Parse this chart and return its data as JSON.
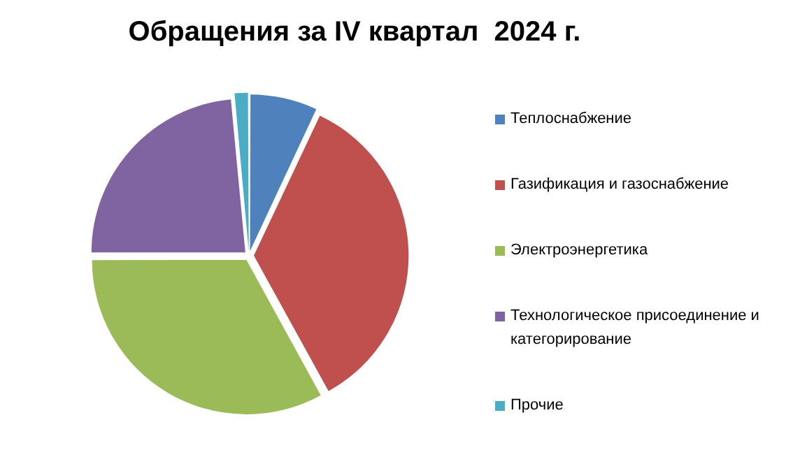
{
  "chart_data": {
    "type": "pie",
    "title": "Обращения за IV квартал  2024 г.",
    "categories": [
      "Теплоснабжение",
      "Газификация и газоснабжение",
      "Электроэнергетика",
      "Технологическое присоединение  и категорирование",
      "Прочие"
    ],
    "values": [
      7,
      35,
      33,
      23.5,
      1.5
    ],
    "colors": [
      "#4f81bd",
      "#c0504d",
      "#9bbb59",
      "#8064a2",
      "#4bacc6"
    ],
    "legend": "right"
  }
}
